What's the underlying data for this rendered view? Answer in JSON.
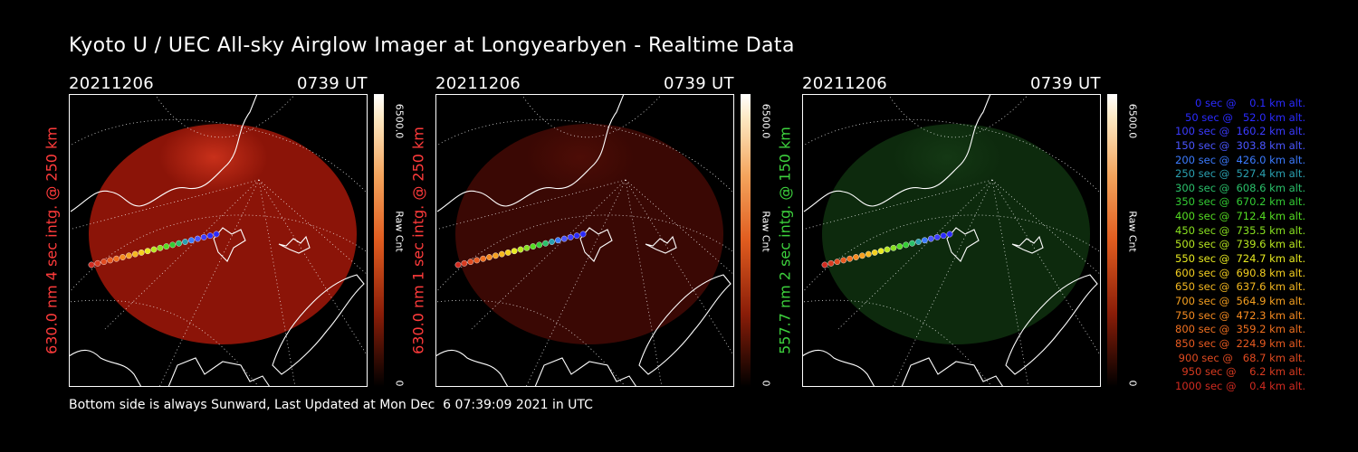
{
  "title": "Kyoto U / UEC All-sky Airglow Imager at Longyearbyen - Realtime Data",
  "panels": [
    {
      "date": "20211206",
      "time": "0739 UT",
      "label": "630.0 nm 4 sec intg. @ 250 km",
      "label_color": "#ff3b3b",
      "colorbar_max": "6500.0",
      "colorbar_unit": "Raw Cnt",
      "colorbar_min": "0",
      "glow": "red-strong"
    },
    {
      "date": "20211206",
      "time": "0739 UT",
      "label": "630.0 nm 1 sec intg. @ 250 km",
      "label_color": "#ff3b3b",
      "colorbar_max": "6500.0",
      "colorbar_unit": "Raw Cnt",
      "colorbar_min": "0",
      "glow": "red-faint"
    },
    {
      "date": "20211206",
      "time": "0739 UT",
      "label": "557.7 nm 2 sec intg. @ 150 km",
      "label_color": "#3dd13d",
      "colorbar_max": "6500.0",
      "colorbar_unit": "Raw Cnt",
      "colorbar_min": "0",
      "glow": "green-faint"
    }
  ],
  "footer": "Bottom side is always Sunward, Last Updated at Mon Dec  6 07:39:09 2021 in UTC",
  "legend": [
    {
      "text": "   0 sec @    0.1 km alt.",
      "color": "#2a2aff"
    },
    {
      "text": "  50 sec @   52.0 km alt.",
      "color": "#2a2aff"
    },
    {
      "text": " 100 sec @  160.2 km alt.",
      "color": "#3b3bff"
    },
    {
      "text": " 150 sec @  303.8 km alt.",
      "color": "#4a55ff"
    },
    {
      "text": " 200 sec @  426.0 km alt.",
      "color": "#3b7bff"
    },
    {
      "text": " 250 sec @  527.4 km alt.",
      "color": "#2aa0b0"
    },
    {
      "text": " 300 sec @  608.6 km alt.",
      "color": "#2ac06a"
    },
    {
      "text": " 350 sec @  670.2 km alt.",
      "color": "#33cc33"
    },
    {
      "text": " 400 sec @  712.4 km alt.",
      "color": "#55dd22"
    },
    {
      "text": " 450 sec @  735.5 km alt.",
      "color": "#88e020"
    },
    {
      "text": " 500 sec @  739.6 km alt.",
      "color": "#b8e820"
    },
    {
      "text": " 550 sec @  724.7 km alt.",
      "color": "#e8ea20"
    },
    {
      "text": " 600 sec @  690.8 km alt.",
      "color": "#f5d020"
    },
    {
      "text": " 650 sec @  637.6 km alt.",
      "color": "#f5b820"
    },
    {
      "text": " 700 sec @  564.9 km alt.",
      "color": "#f5a020"
    },
    {
      "text": " 750 sec @  472.3 km alt.",
      "color": "#f58a20"
    },
    {
      "text": " 800 sec @  359.2 km alt.",
      "color": "#f07020"
    },
    {
      "text": " 850 sec @  224.9 km alt.",
      "color": "#e85a20"
    },
    {
      "text": " 900 sec @   68.7 km alt.",
      "color": "#e04a20"
    },
    {
      "text": " 950 sec @    6.2 km alt.",
      "color": "#d83a20"
    },
    {
      "text": "1000 sec @    0.4 km alt.",
      "color": "#d02a20"
    }
  ]
}
